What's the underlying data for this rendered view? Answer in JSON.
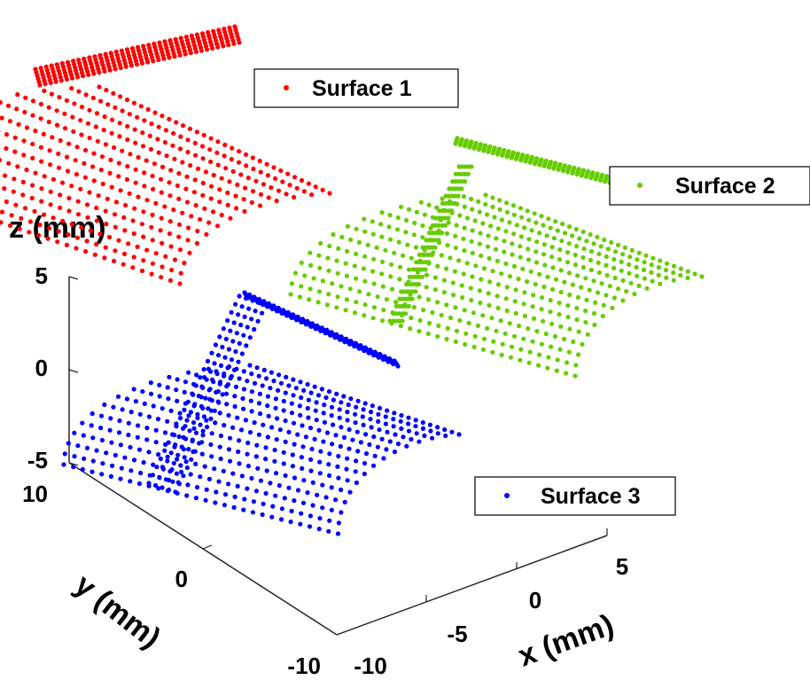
{
  "chart_data": {
    "type": "scatter",
    "dimensions": 3,
    "xlabel": "x (mm)",
    "ylabel": "y (mm)",
    "zlabel": "z (mm)",
    "x_ticks": [
      "-10",
      "-5",
      "0",
      "5"
    ],
    "y_ticks": [
      "-10",
      "0",
      "10"
    ],
    "z_ticks": [
      "-5",
      "0",
      "5"
    ],
    "xlim": [
      -10,
      7
    ],
    "ylim": [
      -10,
      10
    ],
    "zlim": [
      -5,
      5
    ],
    "grid": false,
    "series": [
      {
        "name": "Surface 1",
        "color": "#ff0000",
        "marker": "dot"
      },
      {
        "name": "Surface 2",
        "color": "#66cc00",
        "marker": "dot"
      },
      {
        "name": "Surface 3",
        "color": "#0000ff",
        "marker": "dot"
      }
    ]
  }
}
